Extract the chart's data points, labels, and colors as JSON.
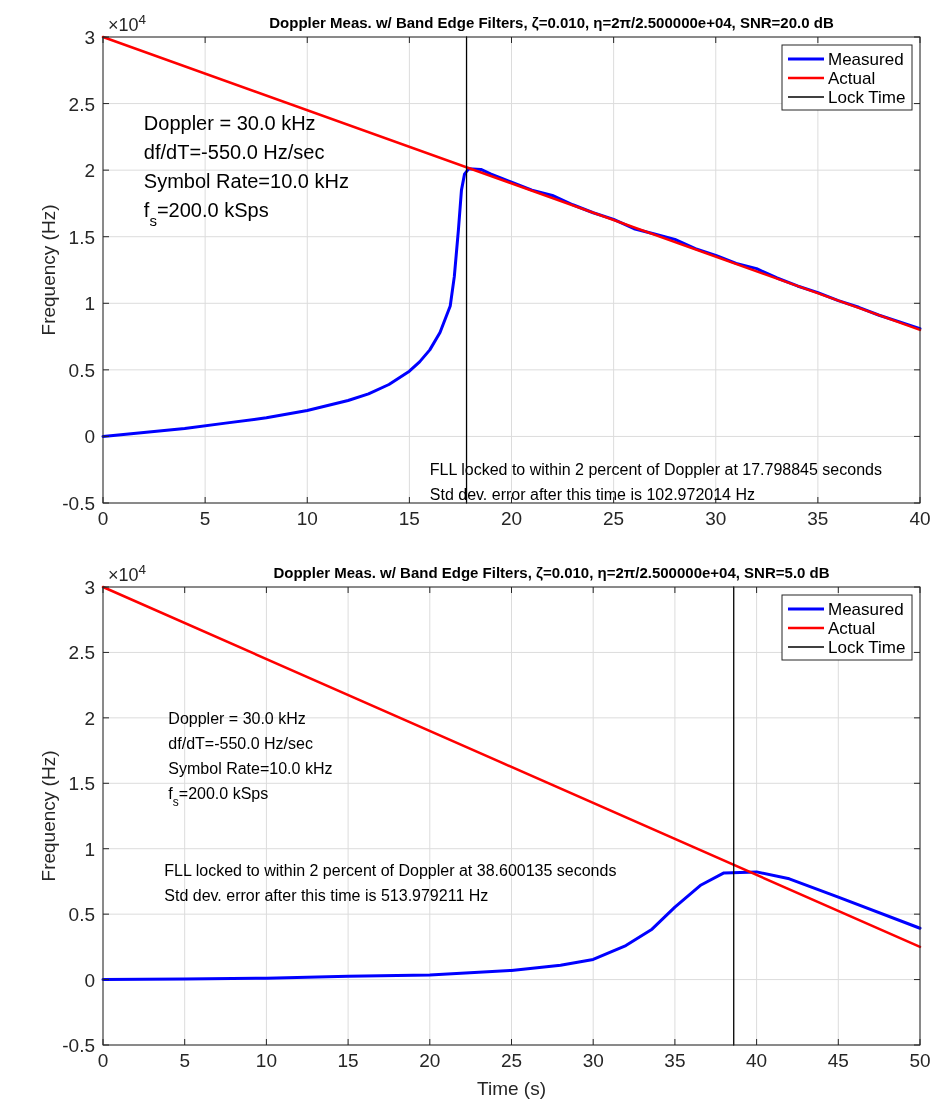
{
  "chart_data": [
    {
      "type": "line",
      "title": "Doppler Meas. w/ Band Edge Filters, ζ=0.010, η=2π/2.500000e+04, SNR=20.0 dB",
      "ylabel": "Frequency (Hz)",
      "annotations": [
        "×10$^{4}$",
        "Doppler = 30.0 kHz",
        "df/dT=-550.0 Hz/sec",
        "Symbol Rate=10.0 kHz",
        "f$_{s}$=200.0 kSps",
        "FLL locked to within 2 percent of Doppler at 17.798845 seconds",
        "Std dev. error after this time is 102.972014 Hz"
      ],
      "series": [
        {
          "name": "Measured",
          "color": "#0000ff",
          "x": [
            0,
            2,
            4,
            6,
            8,
            10,
            12,
            13,
            14,
            15,
            15.5,
            16,
            16.5,
            17,
            17.2,
            17.4,
            17.55,
            17.7,
            17.9,
            18.5,
            19,
            19.5,
            20,
            21,
            22,
            23,
            24,
            25,
            26,
            27,
            28,
            29,
            30,
            31,
            32,
            33,
            34,
            35,
            36,
            37,
            38,
            39,
            40
          ],
          "values": [
            0,
            0.03,
            0.06,
            0.1,
            0.14,
            0.195,
            0.27,
            0.32,
            0.39,
            0.49,
            0.56,
            0.65,
            0.78,
            0.98,
            1.2,
            1.55,
            1.85,
            1.97,
            2.01,
            2.005,
            1.97,
            1.94,
            1.91,
            1.85,
            1.81,
            1.74,
            1.68,
            1.63,
            1.56,
            1.52,
            1.48,
            1.41,
            1.36,
            1.3,
            1.26,
            1.19,
            1.13,
            1.08,
            1.02,
            0.97,
            0.91,
            0.86,
            0.81
          ]
        },
        {
          "name": "Actual",
          "color": "#ff0000",
          "x": [
            0,
            40
          ],
          "values": [
            3,
            0.8
          ]
        },
        {
          "name": "Lock Time",
          "color": "#000000",
          "x": [
            17.798845,
            17.798845
          ],
          "values": [
            -0.5,
            3
          ]
        }
      ],
      "xlim": [
        0,
        40
      ],
      "xticks": [
        0,
        5,
        10,
        15,
        20,
        25,
        30,
        35,
        40
      ],
      "ylim": [
        -0.5,
        3
      ],
      "yticks": [
        -0.5,
        0,
        0.5,
        1,
        1.5,
        2,
        2.5,
        3
      ],
      "grid": true,
      "legend": "top right",
      "line_style": "solid"
    },
    {
      "type": "line",
      "title": "Doppler Meas. w/ Band Edge Filters, ζ=0.010, η=2π/2.500000e+04, SNR=5.0 dB",
      "xlabel": "Time (s)",
      "ylabel": "Frequency (Hz)",
      "annotations": [
        "×10$^{4}$",
        "Doppler = 30.0 kHz",
        "df/dT=-550.0 Hz/sec",
        "Symbol Rate=10.0 kHz",
        "f$_{s}$=200.0 kSps",
        "FLL locked to within 2 percent of Doppler at 38.600135 seconds",
        "Std dev. error after this time is 513.979211 Hz"
      ],
      "series": [
        {
          "name": "Measured",
          "color": "#0000ff",
          "x": [
            0,
            5,
            10,
            15,
            20,
            25,
            28,
            30,
            32,
            33.6,
            35,
            36.6,
            38,
            40,
            42,
            45,
            50
          ],
          "values": [
            0,
            0.005,
            0.01,
            0.025,
            0.035,
            0.07,
            0.11,
            0.154,
            0.26,
            0.385,
            0.554,
            0.723,
            0.815,
            0.823,
            0.77,
            0.63,
            0.392
          ]
        },
        {
          "name": "Actual",
          "color": "#ff0000",
          "x": [
            0,
            50
          ],
          "values": [
            3,
            0.25
          ]
        },
        {
          "name": "Lock Time",
          "color": "#000000",
          "x": [
            38.600135,
            38.600135
          ],
          "values": [
            -0.5,
            3
          ]
        }
      ],
      "xlim": [
        0,
        50
      ],
      "xticks": [
        0,
        5,
        10,
        15,
        20,
        25,
        30,
        35,
        40,
        45,
        50
      ],
      "ylim": [
        -0.5,
        3
      ],
      "yticks": [
        -0.5,
        0,
        0.5,
        1,
        1.5,
        2,
        2.5,
        3
      ],
      "grid": true,
      "legend": "top right",
      "line_style": "solid"
    }
  ]
}
